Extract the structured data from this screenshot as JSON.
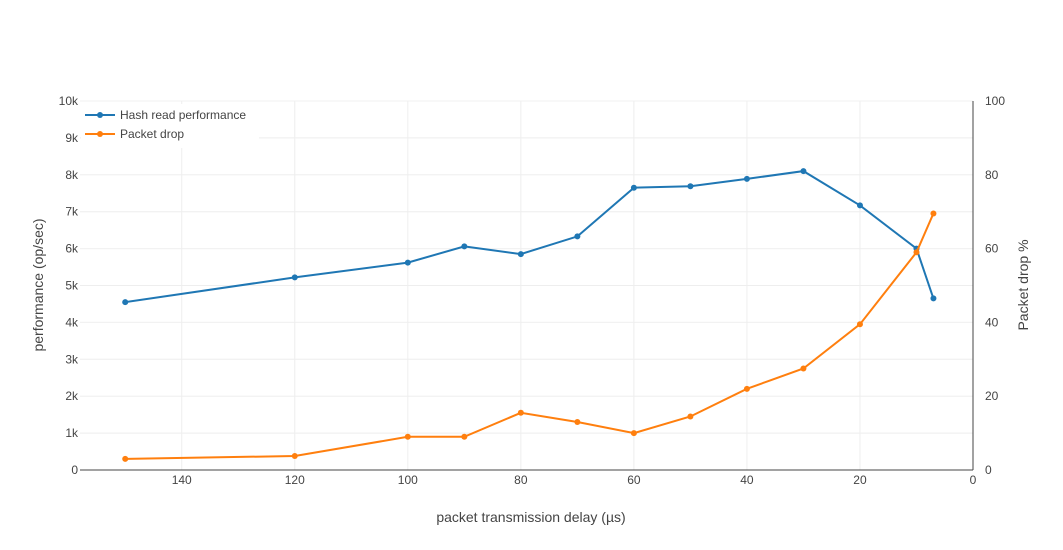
{
  "chart_data": {
    "type": "line",
    "xlabel": "packet transmission delay (µs)",
    "ylabel_left": "performance (op/sec)",
    "ylabel_right": "Packet drop %",
    "x_range": [
      158,
      0
    ],
    "x_reversed": true,
    "x_ticks": [
      140,
      120,
      100,
      80,
      60,
      40,
      20,
      0
    ],
    "x_tick_labels": [
      "140",
      "120",
      "100",
      "80",
      "60",
      "40",
      "20",
      "0"
    ],
    "y_left_range": [
      0,
      10000
    ],
    "y_left_ticks": [
      0,
      1000,
      2000,
      3000,
      4000,
      5000,
      6000,
      7000,
      8000,
      9000,
      10000
    ],
    "y_left_tick_labels": [
      "0",
      "1k",
      "2k",
      "3k",
      "4k",
      "5k",
      "6k",
      "7k",
      "8k",
      "9k",
      "10k"
    ],
    "y_right_range": [
      0,
      100
    ],
    "y_right_ticks": [
      0,
      20,
      40,
      60,
      80,
      100
    ],
    "y_right_tick_labels": [
      "0",
      "20",
      "40",
      "60",
      "80",
      "100"
    ],
    "grid": true,
    "legend_position": "top-left",
    "series": [
      {
        "name": "Hash read performance",
        "axis": "left",
        "color": "#1f77b4",
        "x": [
          150,
          120,
          100,
          90,
          80,
          70,
          60,
          50,
          40,
          30,
          20,
          10,
          7
        ],
        "y": [
          4550,
          5220,
          5620,
          6060,
          5850,
          6330,
          7650,
          7690,
          7890,
          8100,
          7170,
          6000,
          4650
        ]
      },
      {
        "name": "Packet drop",
        "axis": "right",
        "color": "#ff7f0e",
        "x": [
          150,
          120,
          100,
          90,
          80,
          70,
          60,
          50,
          40,
          30,
          20,
          10,
          7
        ],
        "y": [
          3.0,
          3.8,
          9.0,
          9.0,
          15.5,
          13.0,
          10.0,
          14.5,
          22.0,
          27.5,
          39.5,
          59.0,
          69.5
        ]
      }
    ]
  }
}
